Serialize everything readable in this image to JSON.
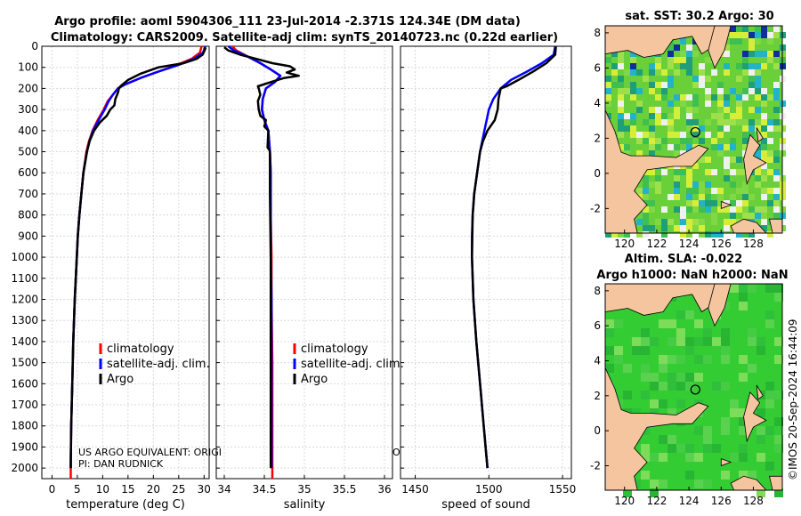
{
  "title_line1": "Argo profile: aoml 5904306_111 23-Jul-2014 -2.371S 124.34E (DM data)",
  "title_line2": "Climatology: CARS2009. Satellite-adj clim: synTS_20140723.nc (0.22d earlier)",
  "pi_line1": "US ARGO EQUIVALENT: ORIGI",
  "pi_line1_tail": "O",
  "pi_line2": "PI: DAN RUDNICK",
  "stamp": "©IMOS 20-Sep-2024 16:44:09",
  "colors": {
    "climatology": "#ff0000",
    "satellite": "#0000ff",
    "argo": "#000000",
    "land": "#f5c59f",
    "sla_sea": "#33cc33",
    "sst_sea": "#6ad03a"
  },
  "legend": {
    "climatology": "climatology",
    "satellite": "satellite-adj. clim.",
    "argo": "Argo"
  },
  "depth_axis": {
    "ylim": [
      0,
      2050
    ],
    "ticks": [
      0,
      100,
      200,
      300,
      400,
      500,
      600,
      700,
      800,
      900,
      1000,
      1100,
      1200,
      1300,
      1400,
      1500,
      1600,
      1700,
      1800,
      1900,
      2000
    ]
  },
  "chart_data": [
    {
      "type": "line",
      "name": "temperature",
      "xlabel": "temperature (deg C)",
      "ylabel": "depth",
      "xlim": [
        -2,
        31
      ],
      "xticks": [
        0,
        5,
        10,
        15,
        20,
        25,
        30
      ],
      "series": [
        {
          "name": "climatology",
          "depth": [
            0,
            30,
            60,
            90,
            120,
            150,
            180,
            200,
            230,
            260,
            300,
            350,
            400,
            450,
            500,
            600,
            700,
            800,
            900,
            1000,
            1200,
            1400,
            1600,
            1800,
            2000,
            2050
          ],
          "values": [
            29.5,
            29.2,
            27.5,
            24.5,
            21,
            17.5,
            14.5,
            13,
            12,
            11,
            10.2,
            9,
            8,
            7.3,
            6.8,
            6.2,
            5.8,
            5.4,
            5.1,
            4.9,
            4.5,
            4.2,
            4,
            3.8,
            3.7,
            3.7
          ]
        },
        {
          "name": "satellite-adj. clim.",
          "depth": [
            0,
            30,
            60,
            90,
            120,
            150,
            180,
            200,
            230,
            260,
            300,
            350,
            400,
            450,
            500,
            600,
            700,
            800,
            900,
            1000,
            1200,
            1400,
            1600,
            1800,
            2000
          ],
          "values": [
            30.2,
            29.8,
            28,
            24.8,
            21,
            17.5,
            14.5,
            13,
            12,
            11.2,
            10.4,
            9.2,
            8.1,
            7.4,
            6.9,
            6.2,
            5.8,
            5.4,
            5.1,
            4.9,
            4.5,
            4.2,
            4,
            3.8,
            3.7
          ]
        },
        {
          "name": "Argo",
          "depth": [
            5,
            20,
            40,
            60,
            80,
            100,
            130,
            160,
            190,
            200,
            220,
            250,
            280,
            300,
            330,
            360,
            400,
            450,
            500,
            600,
            700,
            800,
            900,
            1000,
            1200,
            1400,
            1600,
            1800,
            1950,
            2000
          ],
          "values": [
            30.3,
            30.1,
            29.7,
            28.5,
            26,
            21,
            17.5,
            15,
            13.5,
            13.2,
            13,
            12.5,
            12.3,
            11.5,
            10.8,
            9.5,
            8.3,
            7.4,
            6.9,
            6.2,
            5.8,
            5.4,
            5.1,
            4.9,
            4.5,
            4.2,
            4,
            3.8,
            3.7,
            3.7
          ]
        }
      ]
    },
    {
      "type": "line",
      "name": "salinity",
      "xlabel": "salinity",
      "ylabel": "depth",
      "xlim": [
        33.9,
        36.1
      ],
      "xticks": [
        34,
        34.5,
        35,
        35.5,
        36
      ],
      "xtick_labels": [
        "34",
        "34.5",
        "35",
        "35.5",
        "36"
      ],
      "series": [
        {
          "name": "climatology",
          "depth": [
            0,
            20,
            50,
            80,
            110,
            140,
            170,
            200,
            250,
            300,
            350,
            400,
            500,
            600,
            800,
            1000,
            1200,
            1500,
            2000,
            2050
          ],
          "values": [
            34.1,
            34.15,
            34.3,
            34.45,
            34.58,
            34.7,
            34.63,
            34.52,
            34.48,
            34.47,
            34.5,
            34.55,
            34.57,
            34.58,
            34.58,
            34.59,
            34.59,
            34.6,
            34.6,
            34.6
          ]
        },
        {
          "name": "satellite-adj. clim.",
          "depth": [
            0,
            20,
            50,
            80,
            110,
            140,
            170,
            200,
            250,
            300,
            350,
            400,
            500,
            600,
            800,
            1000,
            1200,
            1500,
            2000
          ],
          "values": [
            34.05,
            34.12,
            34.3,
            34.45,
            34.58,
            34.7,
            34.63,
            34.52,
            34.48,
            34.47,
            34.5,
            34.55,
            34.57,
            34.58,
            34.58,
            34.58,
            34.59,
            34.59,
            34.59
          ]
        },
        {
          "name": "Argo",
          "depth": [
            5,
            20,
            40,
            60,
            80,
            95,
            110,
            125,
            140,
            150,
            170,
            190,
            200,
            230,
            260,
            300,
            330,
            350,
            380,
            400,
            480,
            490,
            500,
            700,
            1000,
            1500,
            2000
          ],
          "values": [
            34.0,
            34.05,
            34.2,
            34.4,
            34.6,
            34.82,
            34.88,
            34.78,
            34.93,
            34.75,
            34.58,
            34.42,
            34.43,
            34.45,
            34.42,
            34.43,
            34.45,
            34.52,
            34.5,
            34.55,
            34.54,
            34.56,
            34.57,
            34.57,
            34.58,
            34.58,
            34.58
          ]
        }
      ]
    },
    {
      "type": "line",
      "name": "speed of sound",
      "xlabel": "speed of sound",
      "ylabel": "depth",
      "xlim": [
        1440,
        1556
      ],
      "xticks": [
        1450,
        1500,
        1550
      ],
      "series": [
        {
          "name": "satellite-adj. clim.",
          "depth": [
            0,
            40,
            80,
            120,
            160,
            200,
            250,
            300,
            400,
            500,
            600,
            700,
            800,
            900,
            1000,
            1200,
            1400,
            1600,
            1800,
            2000
          ],
          "values": [
            1545,
            1544,
            1536,
            1526,
            1515,
            1508,
            1503,
            1500,
            1497,
            1494,
            1492,
            1490,
            1489,
            1488.5,
            1488.5,
            1489.5,
            1491.5,
            1494,
            1496.5,
            1499
          ]
        },
        {
          "name": "Argo",
          "depth": [
            0,
            40,
            80,
            120,
            160,
            190,
            200,
            250,
            300,
            350,
            380,
            400,
            450,
            500,
            600,
            700,
            800,
            1000,
            1200,
            1400,
            1600,
            1800,
            2000
          ],
          "values": [
            1545.5,
            1545,
            1539,
            1530,
            1520,
            1512,
            1508,
            1506.5,
            1506,
            1504,
            1501,
            1499,
            1496,
            1494,
            1492,
            1490,
            1489,
            1488.5,
            1489.5,
            1491.5,
            1494,
            1496.5,
            1499
          ]
        }
      ]
    }
  ],
  "maps": [
    {
      "name": "sst-map",
      "title": "sat. SST: 30.2 Argo: 30",
      "xticks": [
        "120",
        "122",
        "124",
        "126",
        "128"
      ],
      "yticks": [
        "8",
        "6",
        "4",
        "2",
        "0",
        "-2"
      ]
    },
    {
      "name": "sla-map",
      "title_line1": "Altim. SLA: -0.022",
      "title_line2": "Argo h1000: NaN h2000: NaN",
      "xticks": [
        "120",
        "122",
        "124",
        "126",
        "128"
      ],
      "yticks": [
        "8",
        "6",
        "4",
        "2",
        "0",
        "-2"
      ]
    }
  ]
}
